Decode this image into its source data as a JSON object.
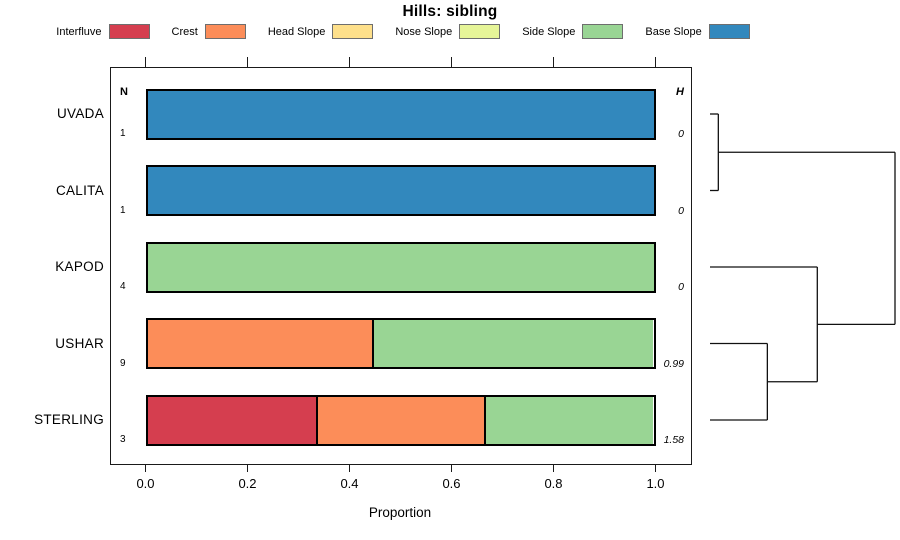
{
  "title": "Hills: sibling",
  "legend": [
    {
      "label": "Interfluve",
      "color": "#D53E4F"
    },
    {
      "label": "Crest",
      "color": "#FC8D59"
    },
    {
      "label": "Head Slope",
      "color": "#FEE08B"
    },
    {
      "label": "Nose Slope",
      "color": "#E6F598"
    },
    {
      "label": "Side Slope",
      "color": "#99D594"
    },
    {
      "label": "Base Slope",
      "color": "#3288BD"
    }
  ],
  "chart_data": {
    "type": "bar",
    "variant": "horizontal-stacked-proportion",
    "title": "Hills: sibling",
    "xlabel": "Proportion",
    "xlim": [
      0,
      1
    ],
    "xtick_values": [
      0,
      0.2,
      0.4,
      0.6,
      0.8,
      1
    ],
    "xtick_labels": [
      "0.0",
      "0.2",
      "0.4",
      "0.6",
      "0.8",
      "1.0"
    ],
    "grid": false,
    "legend_position": "top",
    "n_header": "N",
    "h_header": "H",
    "rows": [
      {
        "name": "UVADA",
        "n": "1",
        "h": "0",
        "segments": [
          {
            "class": "Base Slope",
            "value": 1.0
          }
        ]
      },
      {
        "name": "CALITA",
        "n": "1",
        "h": "0",
        "segments": [
          {
            "class": "Base Slope",
            "value": 1.0
          }
        ]
      },
      {
        "name": "KAPOD",
        "n": "4",
        "h": "0",
        "segments": [
          {
            "class": "Side Slope",
            "value": 1.0
          }
        ]
      },
      {
        "name": "USHAR",
        "n": "9",
        "h": "0.99",
        "segments": [
          {
            "class": "Crest",
            "value": 0.444
          },
          {
            "class": "Side Slope",
            "value": 0.556
          }
        ]
      },
      {
        "name": "STERLING",
        "n": "3",
        "h": "1.58",
        "segments": [
          {
            "class": "Interfluve",
            "value": 0.333
          },
          {
            "class": "Crest",
            "value": 0.333
          },
          {
            "class": "Side Slope",
            "value": 0.334
          }
        ]
      }
    ],
    "dendrogram": {
      "orientation": "right",
      "leaves": [
        "UVADA",
        "CALITA",
        "KAPOD",
        "USHAR",
        "STERLING"
      ],
      "merges": [
        {
          "id": "m1",
          "children": [
            "UVADA",
            "CALITA"
          ],
          "height": 0.045
        },
        {
          "id": "m2",
          "children": [
            "USHAR",
            "STERLING"
          ],
          "height": 0.31
        },
        {
          "id": "m3",
          "children": [
            "KAPOD",
            "m2"
          ],
          "height": 0.58
        },
        {
          "id": "m4",
          "children": [
            "m1",
            "m3"
          ],
          "height": 1.0
        }
      ]
    }
  }
}
